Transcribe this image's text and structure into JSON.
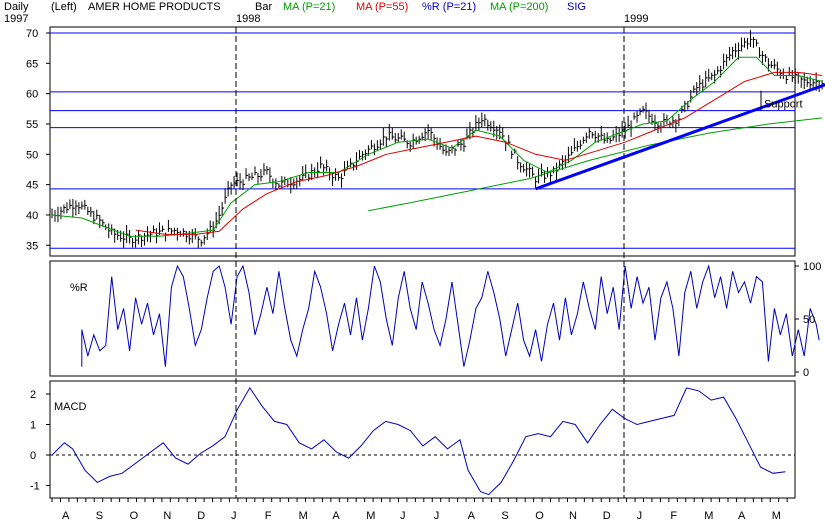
{
  "header": {
    "timeframe": "Daily",
    "scale_side": "(Left)",
    "title": "AMER HOME PRODUCTS",
    "bar_label": "Bar",
    "year_labels": [
      "1997",
      "1998",
      "1999"
    ],
    "legend": [
      {
        "label": "MA (P=21)",
        "color": "#00a000"
      },
      {
        "label": "MA (P=55)",
        "color": "#e00000"
      },
      {
        "label": "%R (P=21)",
        "color": "#0000c0"
      },
      {
        "label": "MA (P=200)",
        "color": "#00a000"
      },
      {
        "label": "SIG",
        "color": "#0000c0"
      }
    ]
  },
  "annotation": {
    "support_label": "Support"
  },
  "chart_data": [
    {
      "type": "bar",
      "subtype": "ohlc-price",
      "title": "AMER HOME PRODUCTS",
      "y_ticks": [
        35,
        40,
        45,
        50,
        55,
        60,
        65,
        70
      ],
      "ylim": [
        34,
        71
      ],
      "horizontal_lines": [
        34.5,
        44.3,
        54.4,
        57.2,
        60.3,
        70.0
      ],
      "x_month_labels": [
        "A",
        "S",
        "O",
        "N",
        "D",
        "J",
        "F",
        "M",
        "A",
        "M",
        "J",
        "J",
        "A",
        "S",
        "O",
        "N",
        "D",
        "J",
        "F",
        "M",
        "A",
        "M"
      ],
      "year_dividers": [
        "J 1998",
        "J 1999"
      ],
      "close_path": [
        [
          0,
          40
        ],
        [
          4,
          42
        ],
        [
          8,
          39
        ],
        [
          10,
          37
        ],
        [
          13,
          36
        ],
        [
          17,
          37
        ],
        [
          21,
          37.5
        ],
        [
          25,
          36
        ],
        [
          27,
          38
        ],
        [
          28,
          40
        ],
        [
          30,
          45
        ],
        [
          33,
          46
        ],
        [
          36,
          47
        ],
        [
          38,
          45
        ],
        [
          42,
          46
        ],
        [
          45,
          48
        ],
        [
          48,
          46
        ],
        [
          52,
          50
        ],
        [
          56,
          53
        ],
        [
          60,
          52
        ],
        [
          63,
          54
        ],
        [
          66,
          50
        ],
        [
          69,
          52
        ],
        [
          72,
          56
        ],
        [
          75,
          54
        ],
        [
          78,
          49
        ],
        [
          81,
          46
        ],
        [
          84,
          47
        ],
        [
          87,
          50
        ],
        [
          90,
          54
        ],
        [
          93,
          52
        ],
        [
          96,
          54
        ],
        [
          99,
          57
        ],
        [
          102,
          55
        ],
        [
          105,
          56
        ],
        [
          108,
          61
        ],
        [
          111,
          63
        ],
        [
          114,
          67
        ],
        [
          117,
          69
        ],
        [
          120,
          65
        ],
        [
          123,
          63
        ],
        [
          126,
          62
        ],
        [
          129,
          62
        ]
      ],
      "series": [
        {
          "name": "MA (P=21)",
          "color": "#00a000",
          "values": [
            [
              0,
              40
            ],
            [
              5,
              39.5
            ],
            [
              9,
              38
            ],
            [
              13,
              36.5
            ],
            [
              18,
              36.5
            ],
            [
              23,
              37
            ],
            [
              27,
              37.5
            ],
            [
              30,
              42
            ],
            [
              34,
              45
            ],
            [
              38,
              45.5
            ],
            [
              43,
              47
            ],
            [
              48,
              47
            ],
            [
              53,
              50
            ],
            [
              58,
              52
            ],
            [
              63,
              52.5
            ],
            [
              67,
              51
            ],
            [
              71,
              54
            ],
            [
              75,
              53
            ],
            [
              79,
              49
            ],
            [
              83,
              47
            ],
            [
              87,
              49
            ],
            [
              91,
              52
            ],
            [
              95,
              53.5
            ],
            [
              99,
              55
            ],
            [
              103,
              55.5
            ],
            [
              107,
              59
            ],
            [
              111,
              62
            ],
            [
              115,
              66
            ],
            [
              118,
              66
            ],
            [
              121,
              63
            ],
            [
              125,
              63
            ],
            [
              129,
              62
            ]
          ]
        },
        {
          "name": "MA (P=55)",
          "color": "#e00000",
          "values": [
            [
              14,
              37.5
            ],
            [
              19,
              36.8
            ],
            [
              24,
              36.8
            ],
            [
              28,
              37.3
            ],
            [
              32,
              41
            ],
            [
              36,
              43.5
            ],
            [
              41,
              45.5
            ],
            [
              46,
              46.5
            ],
            [
              51,
              48
            ],
            [
              56,
              50
            ],
            [
              61,
              51
            ],
            [
              66,
              52
            ],
            [
              71,
              53
            ],
            [
              76,
              52
            ],
            [
              81,
              50
            ],
            [
              86,
              49
            ],
            [
              91,
              50.5
            ],
            [
              96,
              52
            ],
            [
              101,
              54
            ],
            [
              106,
              56
            ],
            [
              111,
              59
            ],
            [
              116,
              62
            ],
            [
              121,
              63.5
            ],
            [
              125,
              63.5
            ],
            [
              129,
              63
            ]
          ]
        },
        {
          "name": "MA (P=200)",
          "color": "#00a000",
          "values": [
            [
              53,
              40.7
            ],
            [
              60,
              42
            ],
            [
              70,
              44
            ],
            [
              80,
              46
            ],
            [
              90,
              49
            ],
            [
              100,
              51.5
            ],
            [
              110,
              53.5
            ],
            [
              120,
              55
            ],
            [
              129,
              56
            ]
          ]
        }
      ],
      "trendline": {
        "name": "Support",
        "from": [
          81,
          44.3
        ],
        "to": [
          131,
          62
        ]
      }
    },
    {
      "type": "line",
      "title": "%R",
      "ylabel": "%R",
      "ylim": [
        0,
        100
      ],
      "y_ticks": [
        0,
        50,
        100
      ],
      "values": [
        [
          5,
          5
        ],
        [
          5,
          40
        ],
        [
          6,
          15
        ],
        [
          7,
          35
        ],
        [
          8,
          20
        ],
        [
          9,
          25
        ],
        [
          10,
          90
        ],
        [
          11,
          40
        ],
        [
          12,
          60
        ],
        [
          13,
          20
        ],
        [
          14,
          70
        ],
        [
          15,
          45
        ],
        [
          16,
          65
        ],
        [
          17,
          35
        ],
        [
          18,
          55
        ],
        [
          19,
          5
        ],
        [
          20,
          80
        ],
        [
          21,
          100
        ],
        [
          22,
          90
        ],
        [
          23,
          60
        ],
        [
          24,
          25
        ],
        [
          25,
          40
        ],
        [
          26,
          70
        ],
        [
          27,
          95
        ],
        [
          28,
          100
        ],
        [
          29,
          80
        ],
        [
          30,
          45
        ],
        [
          31,
          90
        ],
        [
          32,
          100
        ],
        [
          33,
          75
        ],
        [
          34,
          35
        ],
        [
          35,
          55
        ],
        [
          36,
          80
        ],
        [
          37,
          55
        ],
        [
          38,
          95
        ],
        [
          39,
          60
        ],
        [
          40,
          30
        ],
        [
          41,
          15
        ],
        [
          42,
          40
        ],
        [
          43,
          60
        ],
        [
          44,
          95
        ],
        [
          45,
          80
        ],
        [
          46,
          55
        ],
        [
          47,
          20
        ],
        [
          48,
          45
        ],
        [
          49,
          65
        ],
        [
          50,
          35
        ],
        [
          51,
          70
        ],
        [
          52,
          30
        ],
        [
          53,
          60
        ],
        [
          54,
          100
        ],
        [
          55,
          85
        ],
        [
          56,
          50
        ],
        [
          57,
          25
        ],
        [
          58,
          70
        ],
        [
          59,
          95
        ],
        [
          60,
          60
        ],
        [
          61,
          40
        ],
        [
          62,
          85
        ],
        [
          63,
          65
        ],
        [
          64,
          40
        ],
        [
          65,
          25
        ],
        [
          66,
          50
        ],
        [
          67,
          85
        ],
        [
          68,
          45
        ],
        [
          69,
          5
        ],
        [
          70,
          30
        ],
        [
          71,
          60
        ],
        [
          72,
          70
        ],
        [
          73,
          95
        ],
        [
          74,
          75
        ],
        [
          75,
          50
        ],
        [
          76,
          15
        ],
        [
          77,
          40
        ],
        [
          78,
          65
        ],
        [
          79,
          30
        ],
        [
          80,
          15
        ],
        [
          81,
          40
        ],
        [
          82,
          10
        ],
        [
          83,
          45
        ],
        [
          84,
          65
        ],
        [
          85,
          30
        ],
        [
          86,
          70
        ],
        [
          87,
          35
        ],
        [
          88,
          55
        ],
        [
          89,
          85
        ],
        [
          90,
          60
        ],
        [
          91,
          40
        ],
        [
          92,
          90
        ],
        [
          93,
          55
        ],
        [
          94,
          80
        ],
        [
          95,
          40
        ],
        [
          96,
          100
        ],
        [
          97,
          60
        ],
        [
          98,
          90
        ],
        [
          99,
          65
        ],
        [
          100,
          80
        ],
        [
          101,
          30
        ],
        [
          102,
          70
        ],
        [
          103,
          85
        ],
        [
          104,
          60
        ],
        [
          105,
          15
        ],
        [
          106,
          75
        ],
        [
          107,
          95
        ],
        [
          108,
          60
        ],
        [
          109,
          85
        ],
        [
          110,
          100
        ],
        [
          111,
          70
        ],
        [
          112,
          90
        ],
        [
          113,
          60
        ],
        [
          114,
          95
        ],
        [
          115,
          75
        ],
        [
          116,
          85
        ],
        [
          117,
          65
        ],
        [
          118,
          90
        ],
        [
          119,
          85
        ],
        [
          120,
          10
        ],
        [
          121,
          60
        ],
        [
          122,
          35
        ],
        [
          123,
          55
        ],
        [
          124,
          15
        ],
        [
          125,
          40
        ],
        [
          126,
          15
        ],
        [
          127,
          60
        ],
        [
          128,
          45
        ],
        [
          128.5,
          30
        ]
      ]
    },
    {
      "type": "line",
      "title": "MACD",
      "ylabel": "MACD",
      "ylim": [
        -1.35,
        2.25
      ],
      "y_ticks": [
        -1,
        0,
        1,
        2
      ],
      "values": [
        [
          0,
          0
        ],
        [
          3,
          0.4
        ],
        [
          5,
          0.2
        ],
        [
          8,
          -0.5
        ],
        [
          11,
          -0.9
        ],
        [
          14,
          -0.7
        ],
        [
          17,
          -0.6
        ],
        [
          21,
          -0.2
        ],
        [
          24,
          0.1
        ],
        [
          27,
          0.4
        ],
        [
          30,
          -0.1
        ],
        [
          33,
          -0.3
        ],
        [
          36,
          0.05
        ],
        [
          39,
          0.3
        ],
        [
          42,
          0.6
        ],
        [
          45,
          1.5
        ],
        [
          48,
          2.2
        ],
        [
          51,
          1.6
        ],
        [
          54,
          1.1
        ],
        [
          57,
          1.0
        ],
        [
          60,
          0.4
        ],
        [
          63,
          0.2
        ],
        [
          66,
          0.5
        ],
        [
          69,
          0.1
        ],
        [
          72,
          -0.1
        ],
        [
          75,
          0.3
        ],
        [
          78,
          0.8
        ],
        [
          81,
          1.1
        ],
        [
          84,
          1.0
        ],
        [
          87,
          0.8
        ],
        [
          90,
          0.3
        ],
        [
          93,
          0.6
        ],
        [
          96,
          0.2
        ],
        [
          99,
          0.5
        ],
        [
          101,
          -0.5
        ],
        [
          104,
          -1.2
        ],
        [
          106,
          -1.3
        ],
        [
          109,
          -0.9
        ],
        [
          112,
          -0.2
        ],
        [
          115,
          0.6
        ],
        [
          118,
          0.7
        ],
        [
          121,
          0.6
        ],
        [
          124,
          1.1
        ],
        [
          127,
          1.0
        ],
        [
          130,
          0.4
        ],
        [
          133,
          1.0
        ],
        [
          136,
          1.5
        ],
        [
          139,
          1.2
        ],
        [
          142,
          1.0
        ],
        [
          145,
          1.1
        ],
        [
          148,
          1.2
        ],
        [
          151,
          1.3
        ],
        [
          154,
          2.2
        ],
        [
          157,
          2.1
        ],
        [
          160,
          1.8
        ],
        [
          163,
          1.9
        ],
        [
          166,
          1.2
        ],
        [
          169,
          0.4
        ],
        [
          172,
          -0.4
        ],
        [
          175,
          -0.6
        ],
        [
          178,
          -0.55
        ]
      ]
    }
  ]
}
